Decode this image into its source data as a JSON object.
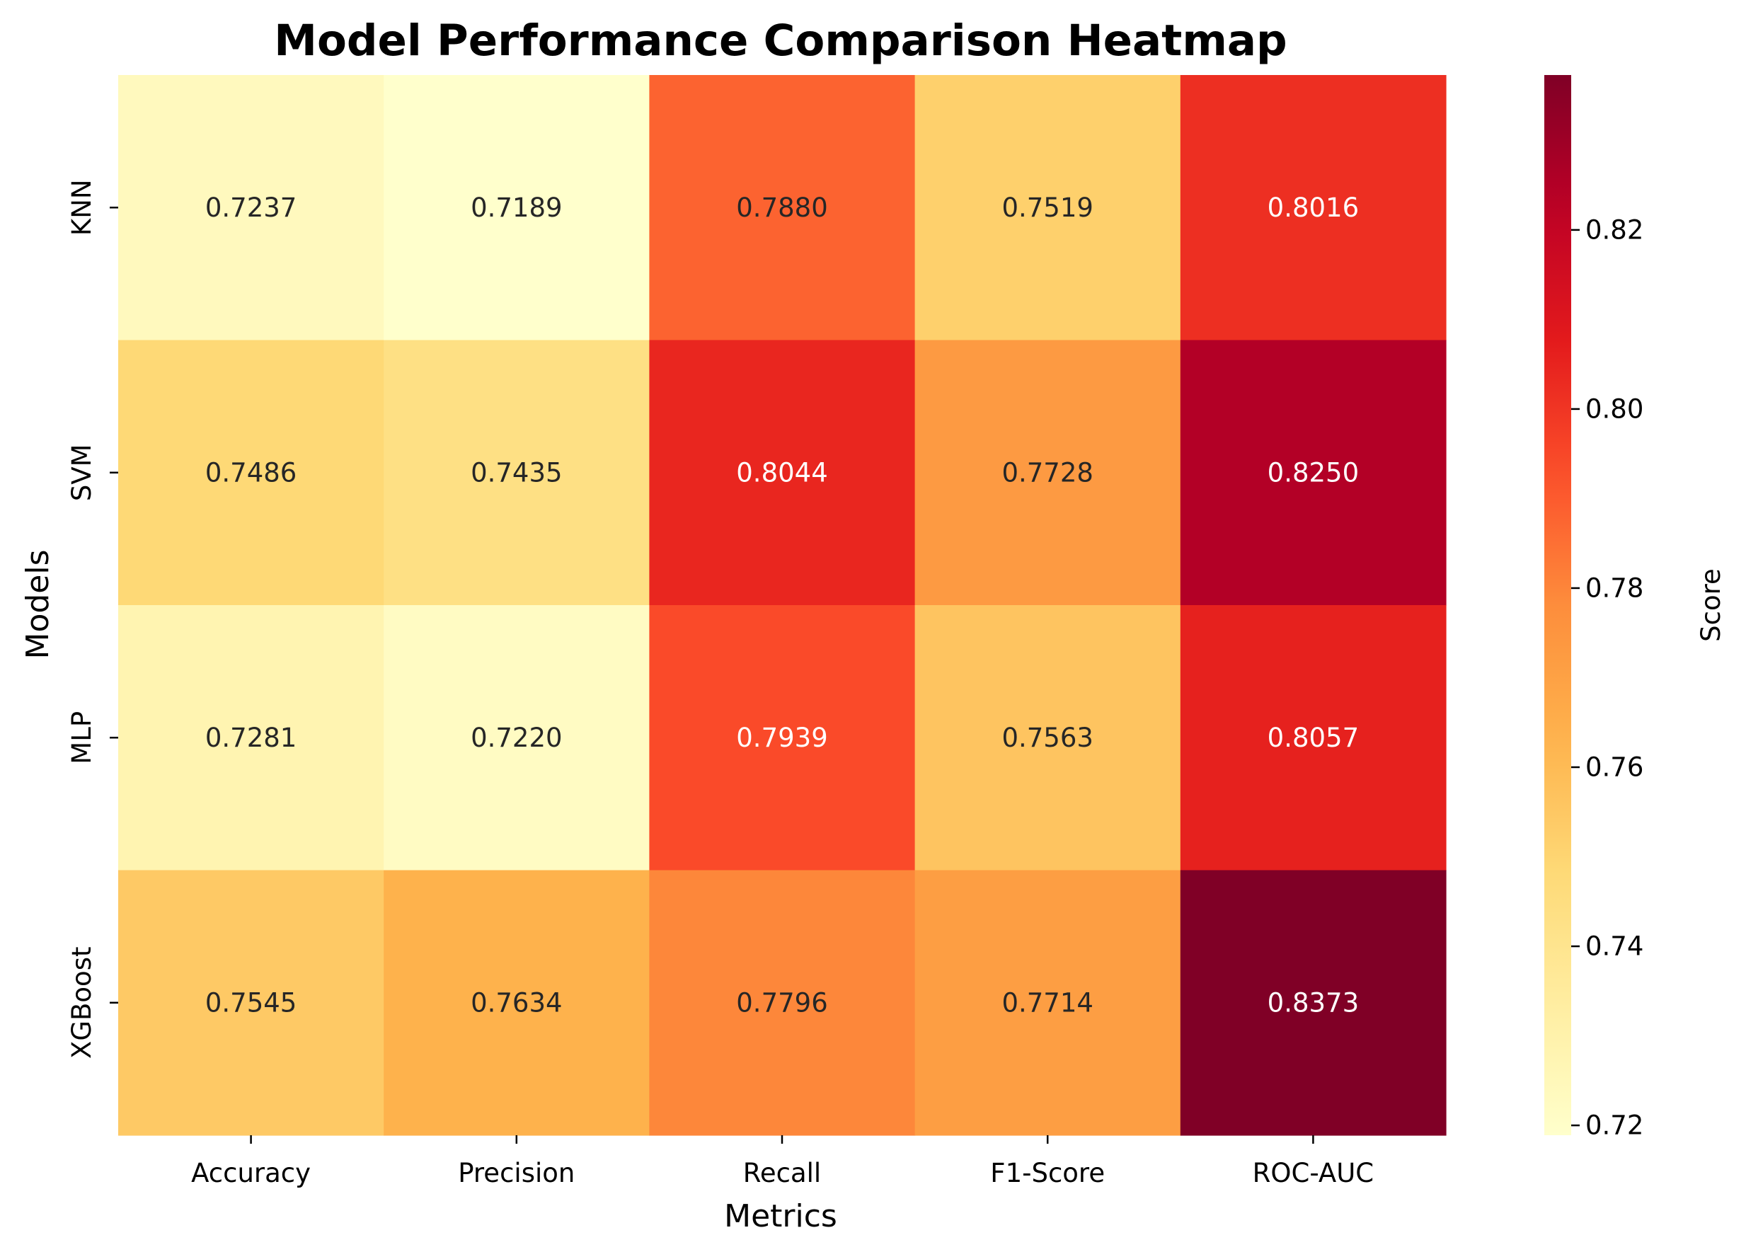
{
  "chart_data": {
    "type": "heatmap",
    "title": "Model Performance Comparison Heatmap",
    "xlabel": "Metrics",
    "ylabel": "Models",
    "x_categories": [
      "Accuracy",
      "Precision",
      "Recall",
      "F1-Score",
      "ROC-AUC"
    ],
    "y_categories": [
      "KNN",
      "SVM",
      "MLP",
      "XGBoost"
    ],
    "values": [
      [
        0.7237,
        0.7189,
        0.788,
        0.7519,
        0.8016
      ],
      [
        0.7486,
        0.7435,
        0.8044,
        0.7728,
        0.825
      ],
      [
        0.7281,
        0.722,
        0.7939,
        0.7563,
        0.8057
      ],
      [
        0.7545,
        0.7634,
        0.7796,
        0.7714,
        0.8373
      ]
    ],
    "value_labels": [
      [
        "0.7237",
        "0.7189",
        "0.7880",
        "0.7519",
        "0.8016"
      ],
      [
        "0.7486",
        "0.7435",
        "0.8044",
        "0.7728",
        "0.8250"
      ],
      [
        "0.7281",
        "0.7220",
        "0.7939",
        "0.7563",
        "0.8057"
      ],
      [
        "0.7545",
        "0.7634",
        "0.7796",
        "0.7714",
        "0.8373"
      ]
    ],
    "colormap": "YlOrRd",
    "colorbar": {
      "label": "Score",
      "range": [
        0.7189,
        0.8373
      ],
      "ticks": [
        0.72,
        0.74,
        0.76,
        0.78,
        0.8,
        0.82
      ],
      "tick_labels": [
        "0.72",
        "0.74",
        "0.76",
        "0.78",
        "0.80",
        "0.82"
      ]
    },
    "grid": false,
    "legend": "colorbar-right"
  }
}
